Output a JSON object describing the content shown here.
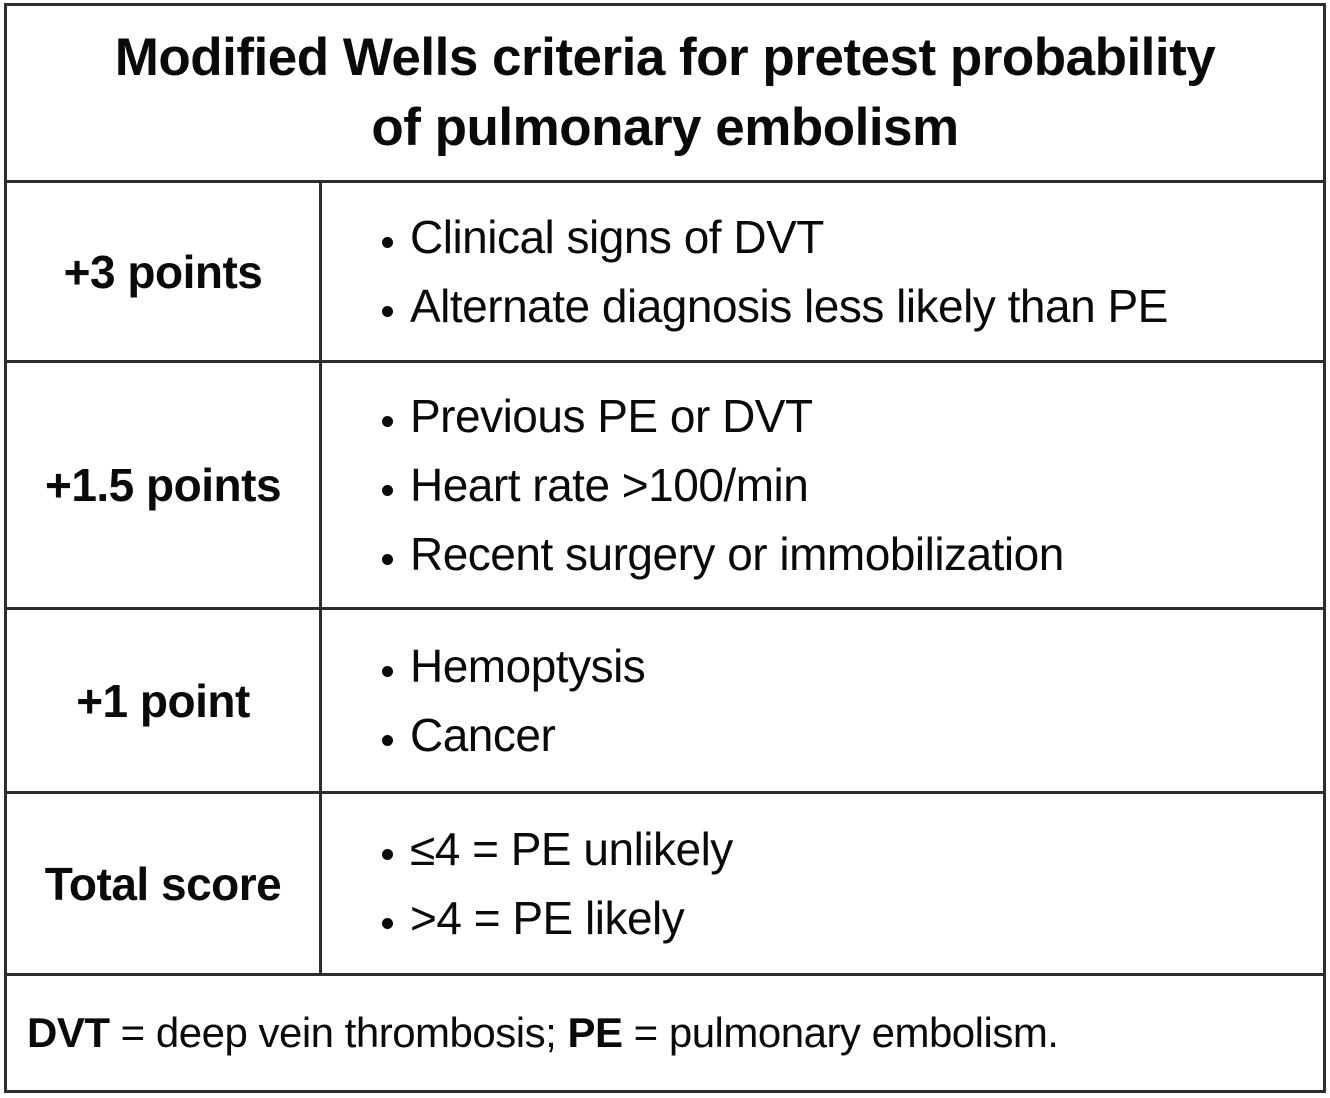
{
  "table": {
    "title": {
      "line1": "Modified Wells criteria for pretest probability",
      "line2": "of pulmonary embolism"
    },
    "rows": [
      {
        "points": "+3 points",
        "criteria": [
          "Clinical signs of DVT",
          "Alternate diagnosis less likely than PE"
        ]
      },
      {
        "points": "+1.5 points",
        "criteria": [
          "Previous PE or DVT",
          "Heart rate >100/min",
          "Recent surgery or immobilization"
        ]
      },
      {
        "points": "+1 point",
        "criteria": [
          "Hemoptysis",
          "Cancer"
        ]
      },
      {
        "points": "Total score",
        "criteria": [
          "≤4 = PE unlikely",
          ">4 = PE likely"
        ]
      }
    ],
    "footnote": {
      "abbr1": "DVT",
      "def1": " = deep vein thrombosis; ",
      "abbr2": "PE",
      "def2": " = pulmonary embolism."
    },
    "colors": {
      "border": "#2d2d2d",
      "text": "#0a0a0a",
      "background": "#ffffff"
    }
  }
}
